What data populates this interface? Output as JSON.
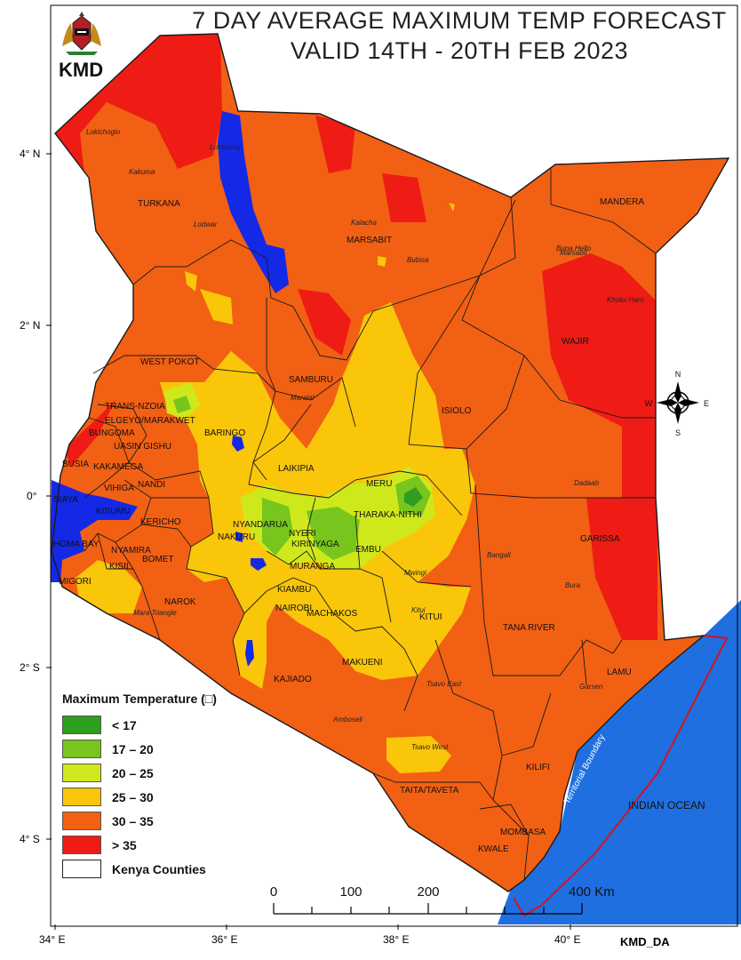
{
  "header": {
    "agency": "KMD",
    "title_line1": "7 DAY AVERAGE MAXIMUM TEMP FORECAST",
    "title_line2": "VALID 14TH - 20TH FEB 2023"
  },
  "legend": {
    "title": "Maximum Temperature (□)",
    "classes": [
      {
        "label": "< 17",
        "color": "#2e9e1e"
      },
      {
        "label": "17 – 20",
        "color": "#77c51d"
      },
      {
        "label": "20 – 25",
        "color": "#cfe81c"
      },
      {
        "label": "25 – 30",
        "color": "#f9c60a"
      },
      {
        "label": "30 – 35",
        "color": "#f26014"
      },
      {
        "label": "> 35",
        "color": "#ee1c15"
      }
    ],
    "counties_label": "Kenya Counties"
  },
  "colors": {
    "ocean": "#1f6fe0",
    "lake": "#1429e6",
    "boundary": "#d5131e",
    "background": "#ffffff"
  },
  "axes": {
    "latitudes": [
      "4° N",
      "2° N",
      "0°",
      "2° S",
      "4° S"
    ],
    "longitudes": [
      "34° E",
      "36° E",
      "38° E",
      "40° E"
    ]
  },
  "scale_bar": {
    "ticks": [
      "0",
      "100",
      "200"
    ],
    "end_label": "400 Km"
  },
  "labels": {
    "counties": [
      "TURKANA",
      "MARSABIT",
      "MANDERA",
      "WAJIR",
      "WEST POKOT",
      "SAMBURU",
      "ISIOLO",
      "TRANS-NZOIA",
      "ELGEYO/MARAKWET",
      "BUNGOMA",
      "UASIN GISHU",
      "BARINGO",
      "BUSIA",
      "KAKAMEGA",
      "NANDI",
      "LAIKIPIA",
      "MERU",
      "SIAYA",
      "VIHIGA",
      "KISUMU",
      "KERICHO",
      "NYANDARUA",
      "THARAKA-NITHI",
      "NYERI",
      "KIRINYAGA",
      "EMBU",
      "NAKURU",
      "BOMET",
      "HOMA BAY",
      "NYAMIRA",
      "KISII",
      "MIGORI",
      "MURANGA",
      "KIAMBU",
      "NAIROBI",
      "NAROK",
      "MACHAKOS",
      "KITUI",
      "GARISSA",
      "TANA RIVER",
      "MAKUENI",
      "KAJIADO",
      "LAMU",
      "KILIFI",
      "TAITA/TAVETA",
      "MOMBASA",
      "KWALE"
    ],
    "towns": [
      "Lokichogio",
      "Kakuma",
      "Lodwar",
      "Lokitaung",
      "Kalacha",
      "Bubisa",
      "Buna Hello",
      "Kholoi Haro",
      "Marsabit",
      "Maralal",
      "Dadaab",
      "Bangali",
      "Bura",
      "Mwingi",
      "Mara Triangle",
      "Tsavo East",
      "Tsavo West",
      "Amboseli",
      "Garsen",
      "Kitui"
    ],
    "ocean": "INDIAN OCEAN",
    "boundary": "Territorial Boundary",
    "compass": [
      "N",
      "E",
      "S",
      "W"
    ]
  },
  "footer": "KMD_DA"
}
